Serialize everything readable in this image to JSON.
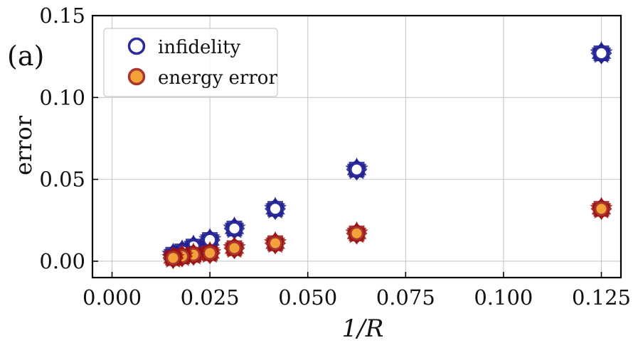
{
  "panel_label": "(a)",
  "chart_data": {
    "type": "scatter",
    "title": "",
    "xlabel": "1/R",
    "ylabel": "error",
    "xlim": [
      -0.005,
      0.13
    ],
    "ylim": [
      -0.01,
      0.15
    ],
    "xticks": [
      0.0,
      0.025,
      0.05,
      0.075,
      0.1,
      0.125
    ],
    "xtick_labels": [
      "0.000",
      "0.025",
      "0.050",
      "0.075",
      "0.100",
      "0.125"
    ],
    "yticks": [
      0.0,
      0.05,
      0.1,
      0.15
    ],
    "ytick_labels": [
      "0.00",
      "0.05",
      "0.10",
      "0.15"
    ],
    "grid": true,
    "legend_position": "top-left",
    "series": [
      {
        "name": "infidelity",
        "edge_color": "#2b2b9b",
        "face_color": "#ffffff",
        "outer_color": "#1f1f8f",
        "x": [
          0.125,
          0.0625,
          0.0417,
          0.03125,
          0.025,
          0.0208,
          0.0179,
          0.0156
        ],
        "y": [
          0.127,
          0.056,
          0.032,
          0.02,
          0.013,
          0.009,
          0.006,
          0.004
        ]
      },
      {
        "name": "energy error",
        "edge_color": "#a8362f",
        "face_color": "#f5a13a",
        "outer_color": "#9b1010",
        "x": [
          0.125,
          0.0625,
          0.0417,
          0.03125,
          0.025,
          0.0208,
          0.0179,
          0.0156
        ],
        "y": [
          0.032,
          0.017,
          0.011,
          0.008,
          0.005,
          0.004,
          0.003,
          0.002
        ]
      }
    ]
  }
}
